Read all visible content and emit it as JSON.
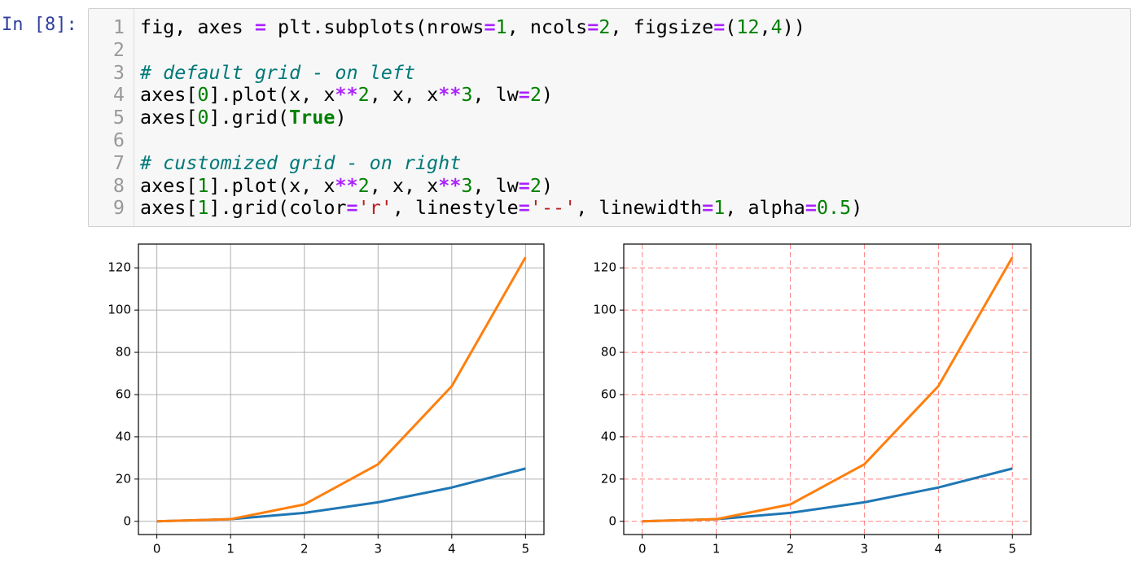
{
  "prompt": "In [8]:",
  "code": {
    "line_numbers": [
      1,
      2,
      3,
      4,
      5,
      6,
      7,
      8,
      9
    ],
    "lines": [
      [
        "fig, axes ",
        "=",
        " plt.subplots(nrows",
        "=",
        "1",
        ", ncols",
        "=",
        "2",
        ", figsize",
        "=",
        "(",
        "12",
        ",",
        "4",
        "))"
      ],
      [],
      [
        "# default grid - on left"
      ],
      [
        "axes[",
        "0",
        "].plot(x, x",
        "**",
        "2",
        ", x, x",
        "**",
        "3",
        ", lw",
        "=",
        "2",
        ")"
      ],
      [
        "axes[",
        "0",
        "].grid(",
        "True",
        ")"
      ],
      [],
      [
        "# customized grid - on right"
      ],
      [
        "axes[",
        "1",
        "].plot(x, x",
        "**",
        "2",
        ", x, x",
        "**",
        "3",
        ", lw",
        "=",
        "2",
        ")"
      ],
      [
        "axes[",
        "1",
        "].grid(color",
        "=",
        "'r'",
        ", linestyle",
        "=",
        "'--'",
        ", linewidth",
        "=",
        "1",
        ", alpha",
        "=",
        "0.5",
        ")"
      ]
    ]
  },
  "chart_data": [
    {
      "type": "line",
      "x": [
        0,
        1,
        2,
        3,
        4,
        5
      ],
      "series": [
        {
          "color": "#1f77b4",
          "values": [
            0,
            1,
            4,
            9,
            16,
            25
          ]
        },
        {
          "color": "#ff7f0e",
          "values": [
            0,
            1,
            8,
            27,
            64,
            125
          ]
        }
      ],
      "xlim": [
        -0.25,
        5.25
      ],
      "ylim": [
        -6.25,
        131.25
      ],
      "xticks": [
        0,
        1,
        2,
        3,
        4,
        5
      ],
      "yticks": [
        0,
        20,
        40,
        60,
        80,
        100,
        120
      ],
      "grid": true,
      "grid_color": "#b0b0b0",
      "grid_linestyle": "solid",
      "grid_alpha": 1
    },
    {
      "type": "line",
      "x": [
        0,
        1,
        2,
        3,
        4,
        5
      ],
      "series": [
        {
          "color": "#1f77b4",
          "values": [
            0,
            1,
            4,
            9,
            16,
            25
          ]
        },
        {
          "color": "#ff7f0e",
          "values": [
            0,
            1,
            8,
            27,
            64,
            125
          ]
        }
      ],
      "xlim": [
        -0.25,
        5.25
      ],
      "ylim": [
        -6.25,
        131.25
      ],
      "xticks": [
        0,
        1,
        2,
        3,
        4,
        5
      ],
      "yticks": [
        0,
        20,
        40,
        60,
        80,
        100,
        120
      ],
      "grid": true,
      "grid_color": "#ff0000",
      "grid_linestyle": "dashed",
      "grid_alpha": 0.5
    }
  ]
}
